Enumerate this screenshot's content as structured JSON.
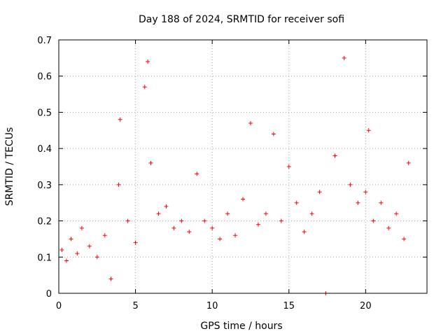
{
  "chart_data": {
    "type": "scatter",
    "title": "Day 188 of 2024, SRMTID for receiver sofi",
    "xlabel": "GPS time / hours",
    "ylabel": "SRMTID / TECUs",
    "xlim": [
      0,
      24
    ],
    "ylim": [
      0,
      0.7
    ],
    "xticks": [
      0,
      5,
      10,
      15,
      20
    ],
    "yticks": [
      0,
      0.1,
      0.2,
      0.3,
      0.4,
      0.5,
      0.6,
      0.7
    ],
    "grid": true,
    "series": [
      {
        "name": "sofi",
        "color": "#ff0000",
        "marker": "plus",
        "summary": "Dense cloud of points between ~0.05 and ~0.35 TECU from 0 to ~22.8 h, with spikes near 4 h (~0.48), 5.8 h (~0.64), 12.5 h (~0.47), 14 h (~0.44) and 18.6 h (~0.65); a single point at ~17.4 h near 0.",
        "points": [
          [
            0.2,
            0.12
          ],
          [
            0.5,
            0.09
          ],
          [
            0.8,
            0.15
          ],
          [
            1.2,
            0.11
          ],
          [
            1.5,
            0.18
          ],
          [
            2.0,
            0.13
          ],
          [
            2.5,
            0.1
          ],
          [
            3.0,
            0.16
          ],
          [
            3.4,
            0.04
          ],
          [
            3.9,
            0.3
          ],
          [
            4.0,
            0.48
          ],
          [
            4.5,
            0.2
          ],
          [
            5.0,
            0.14
          ],
          [
            5.6,
            0.57
          ],
          [
            5.8,
            0.64
          ],
          [
            6.0,
            0.36
          ],
          [
            6.5,
            0.22
          ],
          [
            7.0,
            0.24
          ],
          [
            7.5,
            0.18
          ],
          [
            8.0,
            0.2
          ],
          [
            8.5,
            0.17
          ],
          [
            9.0,
            0.33
          ],
          [
            9.5,
            0.2
          ],
          [
            10.0,
            0.18
          ],
          [
            10.5,
            0.15
          ],
          [
            11.0,
            0.22
          ],
          [
            11.5,
            0.16
          ],
          [
            12.0,
            0.26
          ],
          [
            12.5,
            0.47
          ],
          [
            13.0,
            0.19
          ],
          [
            13.5,
            0.22
          ],
          [
            14.0,
            0.44
          ],
          [
            14.5,
            0.2
          ],
          [
            15.0,
            0.35
          ],
          [
            15.5,
            0.25
          ],
          [
            16.0,
            0.17
          ],
          [
            16.5,
            0.22
          ],
          [
            17.0,
            0.28
          ],
          [
            17.4,
            0.0
          ],
          [
            18.0,
            0.38
          ],
          [
            18.6,
            0.65
          ],
          [
            19.0,
            0.3
          ],
          [
            19.5,
            0.25
          ],
          [
            20.0,
            0.28
          ],
          [
            20.2,
            0.45
          ],
          [
            20.5,
            0.2
          ],
          [
            21.0,
            0.25
          ],
          [
            21.5,
            0.18
          ],
          [
            22.0,
            0.22
          ],
          [
            22.5,
            0.15
          ],
          [
            22.8,
            0.36
          ]
        ]
      }
    ]
  }
}
